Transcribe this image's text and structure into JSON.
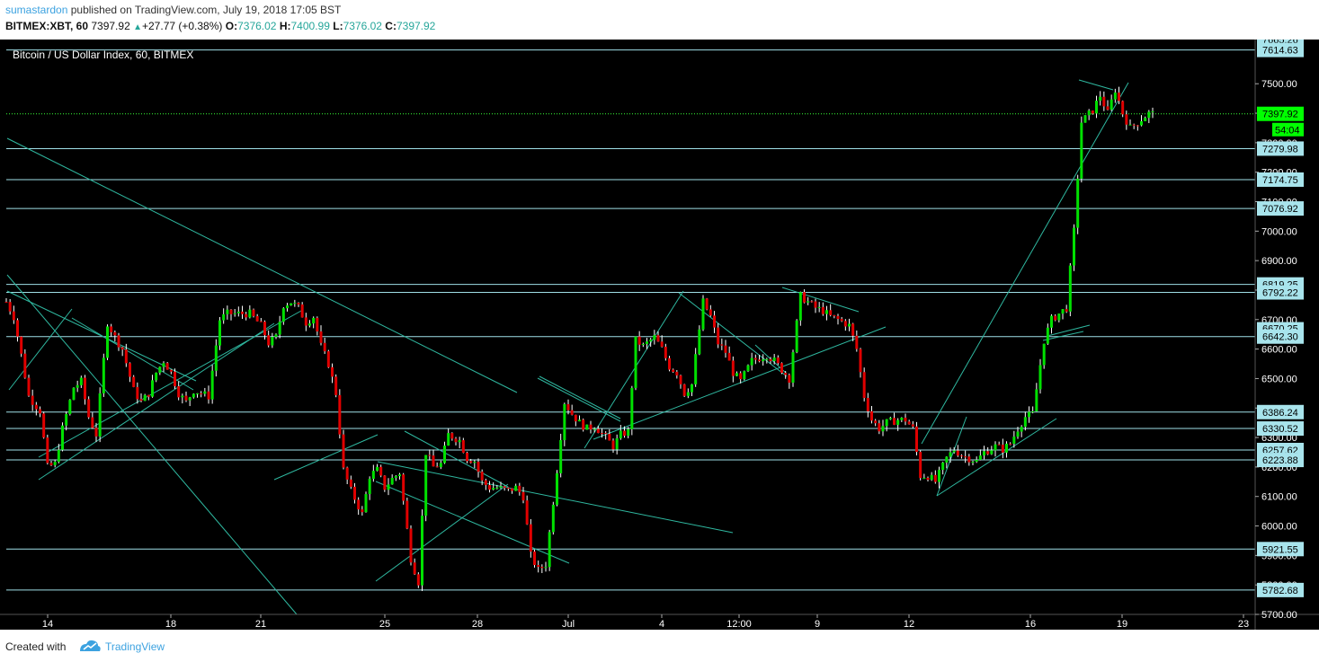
{
  "header": {
    "author": "sumastardon",
    "published_text": "published on TradingView.com, July 19, 2018 17:05 BST",
    "symbol": "BITMEX:XBT, 60",
    "last": "7397.92",
    "change": "+27.77 (+0.38%)",
    "o_label": "O:",
    "o_value": "7376.02",
    "h_label": "H:",
    "h_value": "7400.99",
    "l_label": "L:",
    "l_value": "7376.02",
    "c_label": "C:",
    "c_value": "7397.92"
  },
  "footer": {
    "created_with": "Created with",
    "brand": "TradingView"
  },
  "colors": {
    "background": "#000000",
    "up": "#00e000",
    "down": "#e00000",
    "trendline": "#2fb8a0",
    "hline": "#9fdfe7",
    "label_bg": "#a8e4ec",
    "price_badge": "#00ff00"
  },
  "chart_data": {
    "type": "candlestick",
    "title": "Bitcoin / US Dollar Index, 60, BITMEX",
    "ylim": [
      5700,
      7650
    ],
    "y_ticks": [
      "7500.00",
      "7400.00",
      "7300.00",
      "7200.00",
      "7100.00",
      "7000.00",
      "6900.00",
      "6800.00",
      "6700.00",
      "6600.00",
      "6500.00",
      "6400.00",
      "6300.00",
      "6200.00",
      "6100.00",
      "6000.00",
      "5900.00",
      "5800.00",
      "5700.00"
    ],
    "x_ticks": [
      "14",
      "18",
      "21",
      "25",
      "28",
      "Jul",
      "4",
      "12:00",
      "9",
      "12",
      "16",
      "19",
      "23"
    ],
    "horizontal_levels": [
      7614.63,
      7397.92,
      7279.98,
      7174.75,
      7076.92,
      6819.25,
      6792.22,
      6642.3,
      6386.24,
      6330.52,
      6257.62,
      6223.88,
      5921.55,
      5782.68
    ],
    "level_labels": [
      "7614.63",
      "7397.92",
      "7279.98",
      "7174.75",
      "7076.92",
      "6819.25",
      "6792.22",
      "6642.30",
      "6386.24",
      "6330.52",
      "6257.62",
      "6223.88",
      "5921.55",
      "5782.68"
    ],
    "hidden_labels": [
      "7665.26",
      "6670.25"
    ],
    "last_price": "7397.92",
    "countdown": "54:04",
    "path": [
      [
        0,
        6760
      ],
      [
        2,
        6710
      ],
      [
        4,
        6580
      ],
      [
        6,
        6440
      ],
      [
        9,
        6390
      ],
      [
        11,
        6200
      ],
      [
        13,
        6210
      ],
      [
        15,
        6330
      ],
      [
        18,
        6470
      ],
      [
        20,
        6490
      ],
      [
        22,
        6370
      ],
      [
        24,
        6310
      ],
      [
        27,
        6690
      ],
      [
        29,
        6640
      ],
      [
        31,
        6600
      ],
      [
        34,
        6460
      ],
      [
        36,
        6420
      ],
      [
        38,
        6450
      ],
      [
        40,
        6520
      ],
      [
        42,
        6560
      ],
      [
        44,
        6520
      ],
      [
        46,
        6450
      ],
      [
        48,
        6420
      ],
      [
        50,
        6460
      ],
      [
        52,
        6450
      ],
      [
        54,
        6440
      ],
      [
        57,
        6700
      ],
      [
        59,
        6720
      ],
      [
        61,
        6720
      ],
      [
        63,
        6720
      ],
      [
        65,
        6720
      ],
      [
        68,
        6680
      ],
      [
        70,
        6620
      ],
      [
        72,
        6640
      ],
      [
        74,
        6750
      ],
      [
        76,
        6760
      ],
      [
        78,
        6740
      ],
      [
        80,
        6690
      ],
      [
        82,
        6710
      ],
      [
        84,
        6610
      ],
      [
        86,
        6550
      ],
      [
        88,
        6450
      ],
      [
        90,
        6190
      ],
      [
        92,
        6120
      ],
      [
        95,
        6040
      ],
      [
        97,
        6170
      ],
      [
        99,
        6190
      ],
      [
        101,
        6130
      ],
      [
        103,
        6160
      ],
      [
        105,
        6180
      ],
      [
        108,
        5890
      ],
      [
        110,
        5810
      ],
      [
        112,
        6250
      ],
      [
        114,
        6200
      ],
      [
        116,
        6210
      ],
      [
        118,
        6310
      ],
      [
        121,
        6290
      ],
      [
        123,
        6230
      ],
      [
        125,
        6220
      ],
      [
        127,
        6150
      ],
      [
        129,
        6130
      ],
      [
        131,
        6130
      ],
      [
        134,
        6120
      ],
      [
        136,
        6130
      ],
      [
        138,
        6100
      ],
      [
        140,
        5900
      ],
      [
        142,
        5850
      ],
      [
        144,
        5870
      ],
      [
        147,
        6190
      ],
      [
        149,
        6420
      ],
      [
        151,
        6380
      ],
      [
        153,
        6350
      ],
      [
        155,
        6330
      ],
      [
        157,
        6340
      ],
      [
        160,
        6300
      ],
      [
        162,
        6270
      ],
      [
        164,
        6310
      ],
      [
        166,
        6320
      ],
      [
        168,
        6630
      ],
      [
        170,
        6610
      ],
      [
        173,
        6640
      ],
      [
        175,
        6600
      ],
      [
        177,
        6540
      ],
      [
        179,
        6520
      ],
      [
        181,
        6450
      ],
      [
        183,
        6480
      ],
      [
        186,
        6760
      ],
      [
        188,
        6710
      ],
      [
        190,
        6620
      ],
      [
        192,
        6590
      ],
      [
        194,
        6520
      ],
      [
        196,
        6490
      ],
      [
        199,
        6560
      ],
      [
        201,
        6570
      ],
      [
        203,
        6580
      ],
      [
        205,
        6560
      ],
      [
        207,
        6530
      ],
      [
        209,
        6500
      ],
      [
        212,
        6780
      ],
      [
        214,
        6760
      ],
      [
        216,
        6740
      ],
      [
        218,
        6730
      ],
      [
        220,
        6710
      ],
      [
        222,
        6700
      ],
      [
        225,
        6680
      ],
      [
        227,
        6600
      ],
      [
        229,
        6440
      ],
      [
        231,
        6360
      ],
      [
        233,
        6330
      ],
      [
        235,
        6350
      ],
      [
        238,
        6360
      ],
      [
        240,
        6360
      ],
      [
        242,
        6330
      ],
      [
        244,
        6170
      ],
      [
        246,
        6170
      ],
      [
        248,
        6150
      ],
      [
        251,
        6230
      ],
      [
        253,
        6260
      ],
      [
        255,
        6240
      ],
      [
        257,
        6230
      ],
      [
        259,
        6220
      ],
      [
        261,
        6250
      ],
      [
        264,
        6270
      ],
      [
        266,
        6260
      ],
      [
        268,
        6280
      ],
      [
        270,
        6330
      ],
      [
        272,
        6370
      ],
      [
        274,
        6380
      ],
      [
        277,
        6630
      ],
      [
        279,
        6700
      ],
      [
        281,
        6720
      ],
      [
        283,
        6740
      ],
      [
        285,
        7000
      ],
      [
        287,
        7370
      ],
      [
        290,
        7410
      ],
      [
        292,
        7460
      ],
      [
        294,
        7400
      ],
      [
        296,
        7480
      ],
      [
        298,
        7400
      ],
      [
        300,
        7350
      ],
      [
        303,
        7380
      ],
      [
        305,
        7400
      ],
      [
        306,
        7398
      ]
    ]
  }
}
